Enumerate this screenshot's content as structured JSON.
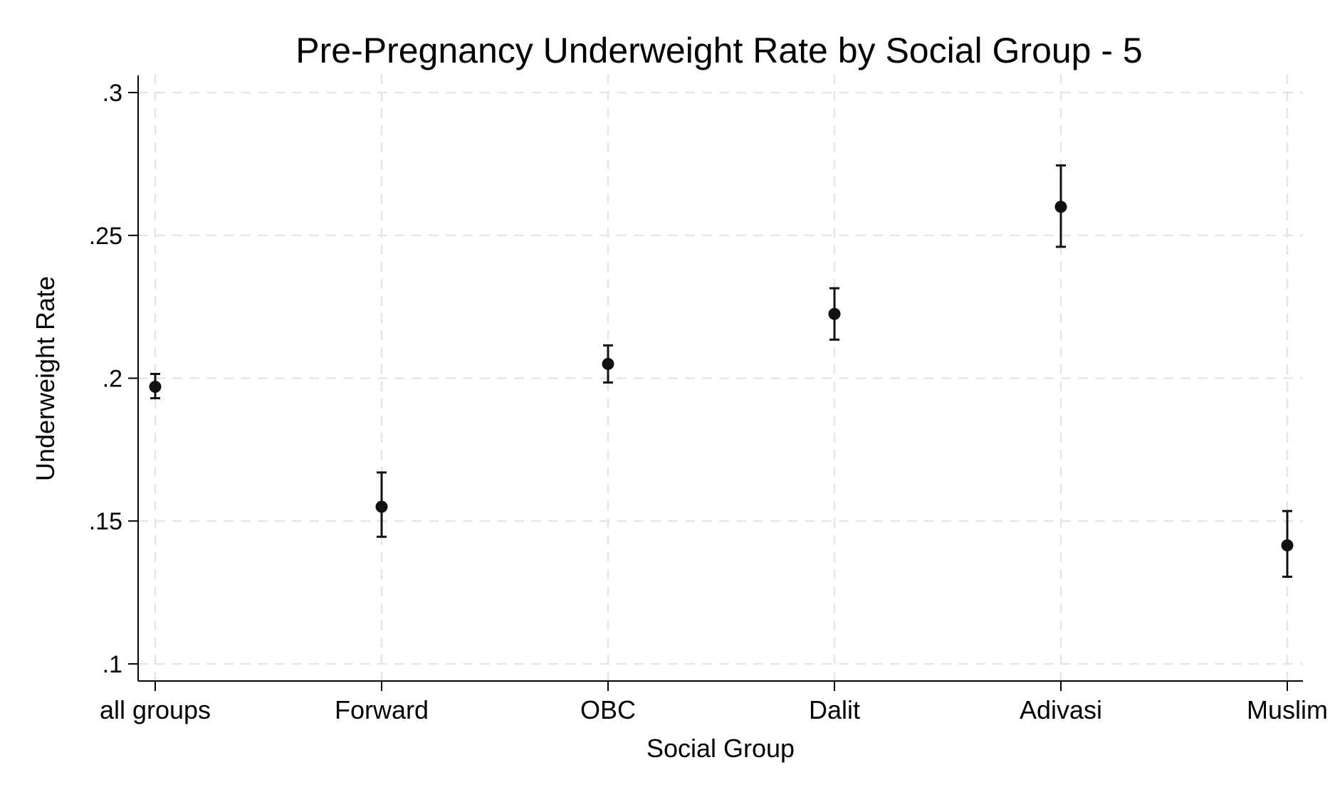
{
  "chart_data": {
    "type": "scatter",
    "title": "Pre-Pregnancy Underweight Rate by Social Group - 5",
    "xlabel": "Social Group",
    "ylabel": "Underweight Rate",
    "categories": [
      "all groups",
      "Forward",
      "OBC",
      "Dalit",
      "Adivasi",
      "Muslim"
    ],
    "points": [
      {
        "category": "all groups",
        "value": 0.197,
        "lower": 0.193,
        "upper": 0.2015
      },
      {
        "category": "Forward",
        "value": 0.155,
        "lower": 0.1445,
        "upper": 0.167
      },
      {
        "category": "OBC",
        "value": 0.205,
        "lower": 0.1985,
        "upper": 0.2115
      },
      {
        "category": "Dalit",
        "value": 0.2225,
        "lower": 0.2135,
        "upper": 0.2315
      },
      {
        "category": "Adivasi",
        "value": 0.26,
        "lower": 0.246,
        "upper": 0.2745
      },
      {
        "category": "Muslim",
        "value": 0.1415,
        "lower": 0.1305,
        "upper": 0.1535
      }
    ],
    "yticks": [
      0.1,
      0.15,
      0.2,
      0.25,
      0.3
    ],
    "ytick_labels": [
      ".1",
      ".15",
      ".2",
      ".25",
      ".3"
    ],
    "ylim": [
      0.094,
      0.305
    ],
    "grid": true,
    "colors": {
      "marker": "#111111",
      "grid": "#e6e6e6",
      "axis": "#000000"
    }
  }
}
